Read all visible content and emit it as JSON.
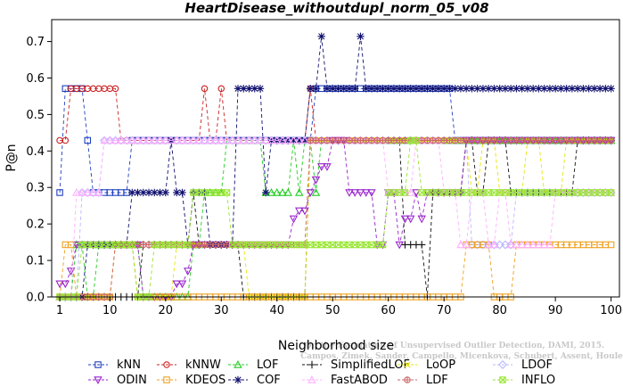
{
  "chart_data": {
    "type": "line",
    "title": "HeartDisease_withoutdupl_norm_05_v08",
    "xlabel": "Neighborhood size",
    "ylabel": "P@n",
    "xlim": [
      0,
      100
    ],
    "ylim": [
      0,
      0.75
    ],
    "xticks": [
      1,
      10,
      20,
      30,
      40,
      50,
      60,
      70,
      80,
      90,
      100
    ],
    "yticks": [
      0.0,
      0.1,
      0.2,
      0.3,
      0.4,
      0.5,
      0.6,
      0.7
    ],
    "grid": false,
    "legend_position": "bottom",
    "watermark": [
      "Campos, Zimek, Sander, Campello, Micenkova, Schubert, Assent, Houle",
      "On the Evaluation of Unsupervised Outlier Detection, DAMI, 2015."
    ],
    "series": [
      {
        "name": "kNN",
        "color": "#1f3fbf",
        "marker": "square",
        "points": [
          [
            1,
            0.286
          ],
          [
            2,
            0.571
          ],
          [
            3,
            0.571
          ],
          [
            4,
            0.571
          ],
          [
            5,
            0.571
          ],
          [
            6,
            0.429
          ],
          [
            7,
            0.286
          ],
          [
            8,
            0.286
          ],
          [
            9,
            0.286
          ],
          [
            10,
            0.286
          ],
          [
            11,
            0.286
          ],
          [
            12,
            0.286
          ],
          [
            13,
            0.286
          ],
          [
            14,
            0.429
          ],
          [
            20,
            0.429
          ],
          [
            30,
            0.429
          ],
          [
            40,
            0.429
          ],
          [
            46,
            0.429
          ],
          [
            47,
            0.571
          ],
          [
            60,
            0.571
          ],
          [
            70,
            0.571
          ],
          [
            72,
            0.429
          ],
          [
            80,
            0.429
          ],
          [
            90,
            0.429
          ],
          [
            100,
            0.429
          ]
        ]
      },
      {
        "name": "kNNW",
        "color": "#cc2222",
        "marker": "circle",
        "points": [
          [
            1,
            0.429
          ],
          [
            2,
            0.429
          ],
          [
            3,
            0.571
          ],
          [
            6,
            0.571
          ],
          [
            8,
            0.571
          ],
          [
            10,
            0.571
          ],
          [
            11,
            0.571
          ],
          [
            12,
            0.429
          ],
          [
            20,
            0.429
          ],
          [
            26,
            0.429
          ],
          [
            27,
            0.571
          ],
          [
            28,
            0.429
          ],
          [
            30,
            0.571
          ],
          [
            31,
            0.429
          ],
          [
            45,
            0.429
          ],
          [
            46,
            0.571
          ],
          [
            47,
            0.429
          ],
          [
            60,
            0.429
          ],
          [
            70,
            0.429
          ],
          [
            80,
            0.429
          ],
          [
            90,
            0.429
          ],
          [
            100,
            0.429
          ]
        ]
      },
      {
        "name": "LOF",
        "color": "#22cc22",
        "marker": "triangle",
        "points": [
          [
            1,
            0.0
          ],
          [
            4,
            0.143
          ],
          [
            5,
            0.143
          ],
          [
            6,
            0.0
          ],
          [
            8,
            0.143
          ],
          [
            14,
            0.143
          ],
          [
            16,
            0.0
          ],
          [
            20,
            0.0
          ],
          [
            25,
            0.143
          ],
          [
            27,
            0.286
          ],
          [
            30,
            0.286
          ],
          [
            31,
            0.429
          ],
          [
            36,
            0.429
          ],
          [
            38,
            0.286
          ],
          [
            41,
            0.286
          ],
          [
            42,
            0.286
          ],
          [
            43,
            0.429
          ],
          [
            44,
            0.286
          ],
          [
            45,
            0.429
          ],
          [
            47,
            0.286
          ],
          [
            48,
            0.429
          ],
          [
            60,
            0.429
          ],
          [
            100,
            0.429
          ]
        ]
      },
      {
        "name": "SimplifiedLOF",
        "color": "#111111",
        "marker": "plus",
        "points": [
          [
            1,
            0.0
          ],
          [
            14,
            0.0
          ],
          [
            16,
            0.143
          ],
          [
            20,
            0.143
          ],
          [
            22,
            0.143
          ],
          [
            23,
            0.143
          ],
          [
            24,
            0.143
          ],
          [
            25,
            0.286
          ],
          [
            26,
            0.143
          ],
          [
            30,
            0.143
          ],
          [
            33,
            0.143
          ],
          [
            34,
            0.0
          ],
          [
            40,
            0.0
          ],
          [
            45,
            0.0
          ],
          [
            46,
            0.429
          ],
          [
            60,
            0.429
          ],
          [
            63,
            0.143
          ],
          [
            66,
            0.143
          ],
          [
            67,
            0.0
          ],
          [
            68,
            0.286
          ],
          [
            70,
            0.286
          ],
          [
            72,
            0.286
          ],
          [
            73,
            0.286
          ],
          [
            74,
            0.429
          ],
          [
            76,
            0.286
          ],
          [
            78,
            0.429
          ],
          [
            82,
            0.286
          ],
          [
            92,
            0.286
          ],
          [
            94,
            0.429
          ],
          [
            100,
            0.429
          ]
        ]
      },
      {
        "name": "LoOP",
        "color": "#e6e600",
        "marker": "x",
        "points": [
          [
            1,
            0.0
          ],
          [
            10,
            0.0
          ],
          [
            11,
            0.143
          ],
          [
            14,
            0.143
          ],
          [
            15,
            0.0
          ],
          [
            20,
            0.0
          ],
          [
            22,
            0.143
          ],
          [
            30,
            0.143
          ],
          [
            35,
            0.0
          ],
          [
            40,
            0.0
          ],
          [
            46,
            0.429
          ],
          [
            60,
            0.429
          ],
          [
            70,
            0.429
          ],
          [
            75,
            0.286
          ],
          [
            77,
            0.429
          ],
          [
            80,
            0.286
          ],
          [
            85,
            0.429
          ],
          [
            88,
            0.286
          ],
          [
            92,
            0.429
          ],
          [
            100,
            0.429
          ]
        ]
      },
      {
        "name": "LDOF",
        "color": "#b8b8ff",
        "marker": "diamond",
        "points": [
          [
            1,
            0.0
          ],
          [
            5,
            0.286
          ],
          [
            8,
            0.286
          ],
          [
            9,
            0.429
          ],
          [
            12,
            0.429
          ],
          [
            20,
            0.429
          ],
          [
            40,
            0.429
          ],
          [
            60,
            0.429
          ],
          [
            72,
            0.429
          ],
          [
            75,
            0.143
          ],
          [
            80,
            0.143
          ],
          [
            83,
            0.286
          ],
          [
            85,
            0.286
          ],
          [
            90,
            0.286
          ],
          [
            100,
            0.286
          ]
        ]
      },
      {
        "name": "ODIN",
        "color": "#9922cc",
        "marker": "triangle-down",
        "points": [
          [
            1,
            0.036
          ],
          [
            2,
            0.036
          ],
          [
            3,
            0.071
          ],
          [
            4,
            0.143
          ],
          [
            6,
            0.143
          ],
          [
            10,
            0.143
          ],
          [
            15,
            0.143
          ],
          [
            16,
            0.0
          ],
          [
            20,
            0.0
          ],
          [
            22,
            0.036
          ],
          [
            23,
            0.036
          ],
          [
            24,
            0.071
          ],
          [
            25,
            0.143
          ],
          [
            30,
            0.143
          ],
          [
            40,
            0.143
          ],
          [
            42,
            0.143
          ],
          [
            43,
            0.214
          ],
          [
            44,
            0.236
          ],
          [
            45,
            0.236
          ],
          [
            46,
            0.286
          ],
          [
            47,
            0.321
          ],
          [
            48,
            0.357
          ],
          [
            49,
            0.357
          ],
          [
            50,
            0.429
          ],
          [
            52,
            0.429
          ],
          [
            53,
            0.286
          ],
          [
            57,
            0.286
          ],
          [
            58,
            0.143
          ],
          [
            60,
            0.286
          ],
          [
            62,
            0.143
          ],
          [
            63,
            0.214
          ],
          [
            64,
            0.214
          ],
          [
            65,
            0.286
          ],
          [
            66,
            0.214
          ],
          [
            67,
            0.286
          ],
          [
            70,
            0.286
          ],
          [
            72,
            0.286
          ],
          [
            74,
            0.429
          ],
          [
            80,
            0.429
          ],
          [
            100,
            0.429
          ]
        ]
      },
      {
        "name": "KDEOS",
        "color": "#f0a020",
        "marker": "square",
        "points": [
          [
            1,
            0.0
          ],
          [
            2,
            0.143
          ],
          [
            3,
            0.143
          ],
          [
            4,
            0.0
          ],
          [
            10,
            0.0
          ],
          [
            11,
            0.143
          ],
          [
            14,
            0.143
          ],
          [
            15,
            0.0
          ],
          [
            20,
            0.0
          ],
          [
            30,
            0.0
          ],
          [
            60,
            0.0
          ],
          [
            66,
            0.0
          ],
          [
            73,
            0.0
          ],
          [
            74,
            0.143
          ],
          [
            78,
            0.143
          ],
          [
            79,
            0.0
          ],
          [
            82,
            0.0
          ],
          [
            83,
            0.143
          ],
          [
            90,
            0.143
          ],
          [
            100,
            0.143
          ]
        ]
      },
      {
        "name": "COF",
        "color": "#101070",
        "marker": "asterisk",
        "points": [
          [
            1,
            0.0
          ],
          [
            5,
            0.0
          ],
          [
            6,
            0.143
          ],
          [
            10,
            0.143
          ],
          [
            13,
            0.143
          ],
          [
            14,
            0.286
          ],
          [
            20,
            0.286
          ],
          [
            21,
            0.429
          ],
          [
            22,
            0.286
          ],
          [
            23,
            0.286
          ],
          [
            24,
            0.143
          ],
          [
            25,
            0.286
          ],
          [
            26,
            0.286
          ],
          [
            27,
            0.286
          ],
          [
            28,
            0.143
          ],
          [
            32,
            0.143
          ],
          [
            33,
            0.571
          ],
          [
            37,
            0.571
          ],
          [
            38,
            0.286
          ],
          [
            39,
            0.429
          ],
          [
            45,
            0.429
          ],
          [
            46,
            0.571
          ],
          [
            47,
            0.571
          ],
          [
            48,
            0.714
          ],
          [
            49,
            0.571
          ],
          [
            54,
            0.571
          ],
          [
            55,
            0.714
          ],
          [
            56,
            0.571
          ],
          [
            60,
            0.571
          ],
          [
            70,
            0.571
          ],
          [
            80,
            0.571
          ],
          [
            90,
            0.571
          ],
          [
            100,
            0.571
          ]
        ]
      },
      {
        "name": "FastABOD",
        "color": "#ffb0ff",
        "marker": "triangle",
        "points": [
          [
            1,
            0.0
          ],
          [
            3,
            0.0
          ],
          [
            4,
            0.286
          ],
          [
            8,
            0.286
          ],
          [
            9,
            0.429
          ],
          [
            12,
            0.429
          ],
          [
            20,
            0.429
          ],
          [
            30,
            0.429
          ],
          [
            40,
            0.429
          ],
          [
            47,
            0.429
          ],
          [
            50,
            0.429
          ],
          [
            60,
            0.286
          ],
          [
            62,
            0.286
          ],
          [
            65,
            0.429
          ],
          [
            70,
            0.286
          ],
          [
            73,
            0.143
          ],
          [
            75,
            0.286
          ],
          [
            78,
            0.143
          ],
          [
            80,
            0.286
          ],
          [
            82,
            0.143
          ],
          [
            90,
            0.286
          ],
          [
            100,
            0.286
          ]
        ]
      },
      {
        "name": "LDF",
        "color": "#cc6666",
        "marker": "circle-plus",
        "points": [
          [
            1,
            0.0
          ],
          [
            10,
            0.0
          ],
          [
            11,
            0.143
          ],
          [
            14,
            0.143
          ],
          [
            20,
            0.143
          ],
          [
            30,
            0.143
          ],
          [
            40,
            0.143
          ],
          [
            45,
            0.143
          ],
          [
            46,
            0.429
          ],
          [
            60,
            0.429
          ],
          [
            70,
            0.429
          ],
          [
            80,
            0.429
          ],
          [
            90,
            0.429
          ],
          [
            100,
            0.429
          ]
        ]
      },
      {
        "name": "INFLO",
        "color": "#99e633",
        "marker": "square-x",
        "points": [
          [
            1,
            0.0
          ],
          [
            5,
            0.143
          ],
          [
            10,
            0.143
          ],
          [
            14,
            0.143
          ],
          [
            15,
            0.0
          ],
          [
            18,
            0.143
          ],
          [
            22,
            0.143
          ],
          [
            25,
            0.286
          ],
          [
            30,
            0.286
          ],
          [
            32,
            0.143
          ],
          [
            45,
            0.143
          ],
          [
            52,
            0.143
          ],
          [
            55,
            0.143
          ],
          [
            59,
            0.143
          ],
          [
            60,
            0.286
          ],
          [
            62,
            0.286
          ],
          [
            64,
            0.429
          ],
          [
            66,
            0.286
          ],
          [
            70,
            0.286
          ],
          [
            75,
            0.286
          ],
          [
            80,
            0.286
          ],
          [
            85,
            0.286
          ],
          [
            90,
            0.286
          ],
          [
            96,
            0.286
          ],
          [
            100,
            0.286
          ]
        ]
      }
    ]
  }
}
